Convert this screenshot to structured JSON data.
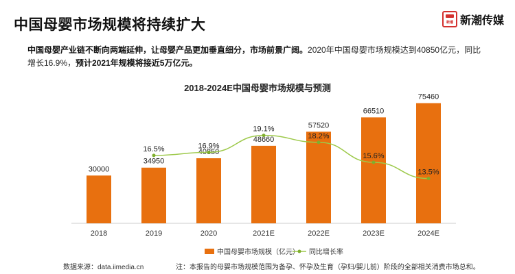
{
  "header": {
    "title": "中国母婴市场规模将持续扩大",
    "logo_mark_text": "新潮",
    "logo_text": "新潮传媒"
  },
  "summary": {
    "part1": "中国母婴产业链不断向两端延伸，让母婴产品更加垂直细分，市场前景广阔。",
    "part2": "2020年中国母婴市场规模达到40850亿元，同比增长16.9%，",
    "part3": "预计2021年规模将接近5万亿元。"
  },
  "footer": {
    "source": "数据来源：data.iimedia.cn",
    "note": "注：本报告的母婴市场规模范围为备孕、怀孕及生育（孕妇/婴儿前）阶段的全部相关消费市场总和。"
  },
  "colors": {
    "bar": "#e8700f",
    "line": "#9dc94a",
    "point": "#7fae2e",
    "axis": "#cccccc"
  },
  "chart_data": {
    "type": "bar",
    "title": "2018-2024E中国母婴市场规模与预测",
    "categories": [
      "2018",
      "2019",
      "2020",
      "2021E",
      "2022E",
      "2023E",
      "2024E"
    ],
    "series": [
      {
        "name": "中国母婴市场规模（亿元）",
        "type": "bar",
        "values": [
          30000,
          34950,
          40850,
          48660,
          57520,
          66510,
          75460
        ],
        "labels": [
          "30000",
          "34950",
          "40850",
          "48660",
          "57520",
          "66510",
          "75460"
        ]
      },
      {
        "name": "同比增长率",
        "type": "line",
        "values": [
          null,
          16.5,
          16.9,
          19.1,
          18.2,
          15.6,
          13.5
        ],
        "labels": [
          "",
          "16.5%",
          "16.9%",
          "19.1%",
          "18.2%",
          "15.6%",
          "13.5%"
        ]
      }
    ],
    "ylim": [
      0,
      80000
    ],
    "y2lim": [
      10,
      22
    ],
    "grid": false,
    "legend": "bottom"
  }
}
